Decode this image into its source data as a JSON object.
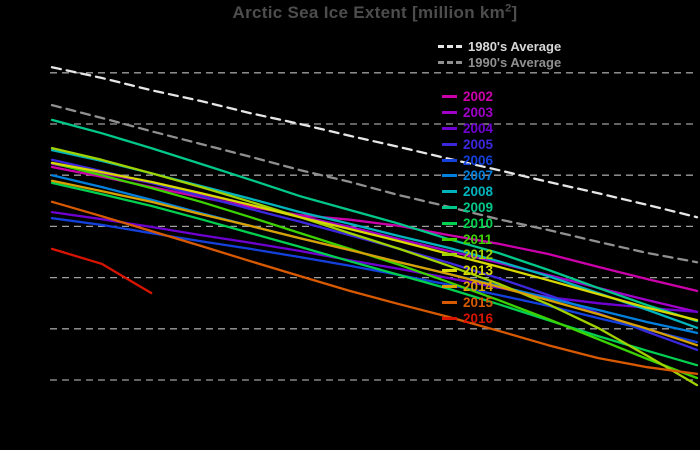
{
  "colors": {
    "background": "#000000",
    "gridline": "#9e9e9e",
    "title_text": "#4d4d4d"
  },
  "chart_data": {
    "type": "line",
    "title": "Arctic Sea Ice Extent [million km²]",
    "title_parts": {
      "prefix": "Arctic Sea Ice Extent [million km",
      "sup": "2",
      "suffix": "]"
    },
    "xlabel": "",
    "ylabel": "",
    "units": "million km²",
    "x_tick_labels": [],
    "y_tick_labels": [],
    "x_axis_visible": false,
    "y_axis_visible": false,
    "grid": "horizontal dashed",
    "y_gridline_values": [
      10,
      9,
      8,
      7,
      6,
      5,
      4
    ],
    "ylim": [
      3.4,
      10.6
    ],
    "values_estimated_from_gridlines": true,
    "legend_position": "upper center-right",
    "series": [
      {
        "name": "1980's Average",
        "group": "average",
        "color": "#e6e6e6",
        "legend_text_color": "#d8d8d8",
        "line_style": "dashed",
        "values": [
          10.11,
          9.9,
          9.66,
          9.45,
          9.21,
          9.0,
          8.77,
          8.55,
          8.32,
          8.1,
          7.87,
          7.65,
          7.42,
          7.18
        ]
      },
      {
        "name": "1990's Average",
        "group": "average",
        "color": "#909090",
        "legend_text_color": "#909090",
        "line_style": "dashed",
        "values": [
          9.37,
          9.12,
          8.86,
          8.61,
          8.36,
          8.1,
          7.87,
          7.61,
          7.38,
          7.14,
          6.93,
          6.7,
          6.48,
          6.3
        ]
      },
      {
        "name": "2002",
        "group": "year",
        "color": "#cc00aa",
        "line_style": "solid",
        "values": [
          8.16,
          7.97,
          7.77,
          7.57,
          7.38,
          7.22,
          7.13,
          7.01,
          6.83,
          6.66,
          6.46,
          6.21,
          5.97,
          5.74
        ]
      },
      {
        "name": "2003",
        "group": "year",
        "color": "#a000c8",
        "line_style": "solid",
        "values": [
          8.22,
          8.04,
          7.85,
          7.63,
          7.42,
          7.2,
          6.99,
          6.75,
          6.52,
          6.29,
          6.05,
          5.8,
          5.56,
          5.33
        ]
      },
      {
        "name": "2004",
        "group": "year",
        "color": "#6e00d2",
        "line_style": "solid",
        "values": [
          7.28,
          7.14,
          6.99,
          6.83,
          6.68,
          6.52,
          6.34,
          6.17,
          5.99,
          5.8,
          5.62,
          5.5,
          5.41,
          5.33
        ]
      },
      {
        "name": "2005",
        "group": "year",
        "color": "#3c28dc",
        "line_style": "solid",
        "values": [
          8.3,
          8.08,
          7.85,
          7.59,
          7.34,
          7.09,
          6.83,
          6.56,
          6.29,
          5.99,
          5.66,
          5.31,
          4.94,
          4.59
        ]
      },
      {
        "name": "2006",
        "group": "year",
        "color": "#1440dc",
        "line_style": "solid",
        "values": [
          7.16,
          7.03,
          6.87,
          6.71,
          6.56,
          6.4,
          6.23,
          6.05,
          5.86,
          5.66,
          5.45,
          5.21,
          4.98,
          4.74
        ]
      },
      {
        "name": "2007",
        "group": "year",
        "color": "#0080dc",
        "line_style": "solid",
        "values": [
          8.0,
          7.77,
          7.52,
          7.26,
          7.01,
          6.77,
          6.54,
          6.3,
          6.07,
          5.84,
          5.6,
          5.37,
          5.13,
          4.92
        ]
      },
      {
        "name": "2008",
        "group": "year",
        "color": "#00b4be",
        "line_style": "solid",
        "values": [
          8.49,
          8.28,
          8.04,
          7.79,
          7.54,
          7.28,
          7.05,
          6.81,
          6.58,
          6.32,
          6.03,
          5.7,
          5.37,
          5.02
        ]
      },
      {
        "name": "2009",
        "group": "year",
        "color": "#00c88a",
        "line_style": "solid",
        "values": [
          9.08,
          8.82,
          8.53,
          8.22,
          7.91,
          7.59,
          7.32,
          7.05,
          6.75,
          6.48,
          6.15,
          5.8,
          5.46,
          5.15
        ]
      },
      {
        "name": "2010",
        "group": "year",
        "color": "#00d050",
        "line_style": "solid",
        "values": [
          7.85,
          7.63,
          7.4,
          7.14,
          6.87,
          6.6,
          6.32,
          6.05,
          5.78,
          5.48,
          5.17,
          4.86,
          4.57,
          4.29
        ]
      },
      {
        "name": "2011",
        "group": "year",
        "color": "#3cd200",
        "line_style": "solid",
        "values": [
          8.24,
          8.0,
          7.75,
          7.48,
          7.18,
          6.87,
          6.56,
          6.25,
          5.91,
          5.56,
          5.19,
          4.8,
          4.41,
          4.04
        ]
      },
      {
        "name": "2012",
        "group": "year",
        "color": "#a0d200",
        "line_style": "solid",
        "values": [
          8.53,
          8.3,
          8.04,
          7.77,
          7.48,
          7.18,
          6.87,
          6.56,
          6.23,
          5.88,
          5.48,
          5.02,
          4.47,
          3.9
        ]
      },
      {
        "name": "2013",
        "group": "year",
        "color": "#d8d800",
        "line_style": "solid",
        "values": [
          8.24,
          8.06,
          7.87,
          7.65,
          7.42,
          7.18,
          6.95,
          6.71,
          6.46,
          6.21,
          5.95,
          5.68,
          5.41,
          5.17
        ]
      },
      {
        "name": "2014",
        "group": "year",
        "color": "#d8a000",
        "line_style": "solid",
        "values": [
          7.89,
          7.69,
          7.48,
          7.24,
          7.01,
          6.77,
          6.54,
          6.3,
          6.07,
          5.82,
          5.56,
          5.29,
          5.0,
          4.68
        ]
      },
      {
        "name": "2015",
        "group": "year",
        "color": "#d85a00",
        "line_style": "solid",
        "values": [
          7.48,
          7.2,
          6.91,
          6.62,
          6.32,
          6.03,
          5.74,
          5.48,
          5.23,
          4.96,
          4.68,
          4.43,
          4.25,
          4.12
        ]
      },
      {
        "name": "2016",
        "group": "year",
        "color": "#d81400",
        "line_style": "solid",
        "values": [
          6.56,
          6.27,
          5.7
        ]
      }
    ]
  }
}
